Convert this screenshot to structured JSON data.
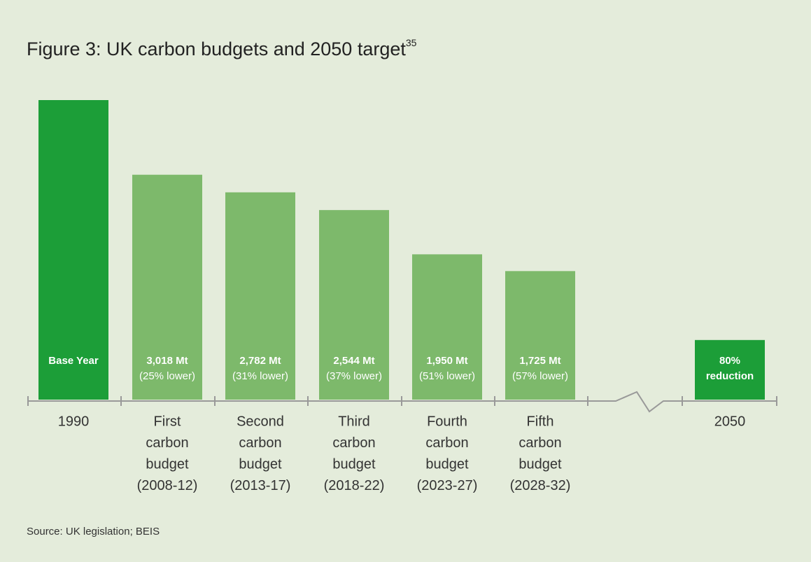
{
  "chart_data": {
    "type": "bar",
    "title": "Figure 3: UK carbon budgets and 2050 target",
    "title_note": "35",
    "categories": [
      [
        "1990"
      ],
      [
        "First",
        "carbon",
        "budget",
        "(2008-12)"
      ],
      [
        "Second",
        "carbon",
        "budget",
        "(2013-17)"
      ],
      [
        "Third",
        "carbon",
        "budget",
        "(2018-22)"
      ],
      [
        "Fourth",
        "carbon",
        "budget",
        "(2023-27)"
      ],
      [
        "Fifth",
        "carbon",
        "budget",
        "(2028-32)"
      ],
      [
        "2050"
      ]
    ],
    "values": [
      4020,
      3018,
      2782,
      2544,
      1950,
      1725,
      800
    ],
    "value_labels": [
      null,
      "3,018 Mt",
      "2,782 Mt",
      "2,544 Mt",
      "1,950 Mt",
      "1,725 Mt",
      null
    ],
    "notes": [
      [
        "Base Year"
      ],
      [
        "(25% lower)"
      ],
      [
        "(31% lower)"
      ],
      [
        "(37% lower)"
      ],
      [
        "(51% lower)"
      ],
      [
        "(57% lower)"
      ],
      [
        "80%",
        "reduction"
      ]
    ],
    "colors": [
      "#1c9e38",
      "#7db96b",
      "#7db96b",
      "#7db96b",
      "#7db96b",
      "#7db96b",
      "#1c9e38"
    ],
    "source": "Source: UK legislation; BEIS"
  }
}
